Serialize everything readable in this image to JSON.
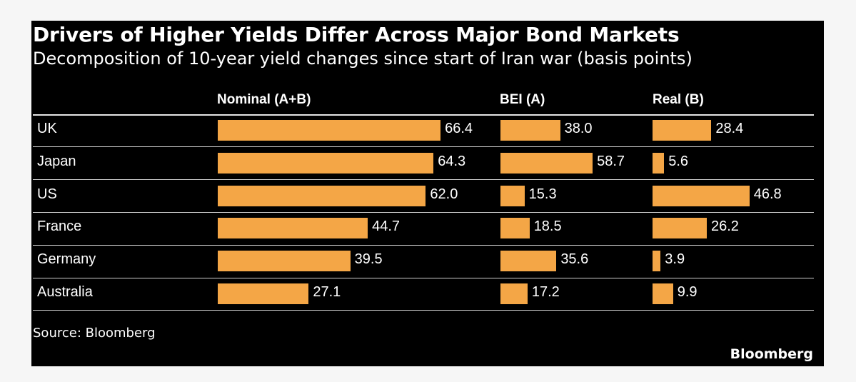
{
  "chart_data": {
    "type": "bar",
    "title": "Drivers of Higher Yields Differ Across Major Bond Markets",
    "subtitle": "Decomposition of 10-year yield changes since start of Iran war (basis points)",
    "categories": [
      "UK",
      "Japan",
      "US",
      "France",
      "Germany",
      "Australia"
    ],
    "series": [
      {
        "name": "Nominal (A+B)",
        "values": [
          66.4,
          64.3,
          62.0,
          44.7,
          39.5,
          27.1
        ],
        "labels": [
          "66.4",
          "64.3",
          "62.0",
          "44.7",
          "39.5",
          "27.1"
        ]
      },
      {
        "name": "BEI (A)",
        "values": [
          38.0,
          58.7,
          15.3,
          18.5,
          35.6,
          17.2
        ],
        "labels": [
          "38.0",
          "58.7",
          "15.3",
          "18.5",
          "35.6",
          "17.2"
        ]
      },
      {
        "name": "Real (B)",
        "values": [
          28.4,
          5.6,
          46.8,
          26.2,
          3.9,
          9.9
        ],
        "labels": [
          "28.4",
          "5.6",
          "46.8",
          "26.2",
          "3.9",
          "9.9"
        ]
      }
    ],
    "source": "Source: Bloomberg",
    "bar_color": "#f4a646"
  },
  "brand": "Bloomberg"
}
